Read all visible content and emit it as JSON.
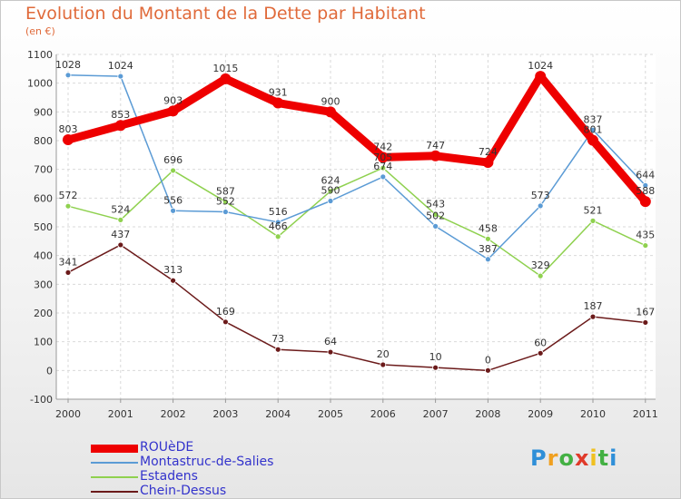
{
  "chart_data": {
    "type": "line",
    "title": "Evolution du Montant de la Dette par Habitant",
    "subtitle": "(en €)",
    "xlabel": "",
    "ylabel": "",
    "categories": [
      "2000",
      "2001",
      "2002",
      "2003",
      "2004",
      "2005",
      "2006",
      "2007",
      "2008",
      "2009",
      "2010",
      "2011"
    ],
    "ylim": [
      -100,
      1100
    ],
    "yticks": [
      -100,
      0,
      100,
      200,
      300,
      400,
      500,
      600,
      700,
      800,
      900,
      1000,
      1100
    ],
    "grid": true,
    "legend_position": "bottom-left",
    "series": [
      {
        "name": "ROUèDE",
        "color": "#ee0000",
        "values": [
          803,
          853,
          903,
          1015,
          931,
          900,
          742,
          747,
          724,
          1024,
          801,
          588
        ]
      },
      {
        "name": "Montastruc-de-Salies",
        "color": "#5b9bd5",
        "values": [
          1028,
          1024,
          556,
          552,
          516,
          590,
          674,
          502,
          387,
          573,
          837,
          644
        ]
      },
      {
        "name": "Estadens",
        "color": "#8fd14f",
        "values": [
          572,
          524,
          696,
          587,
          466,
          624,
          705,
          543,
          458,
          329,
          521,
          435
        ]
      },
      {
        "name": "Chein-Dessus",
        "color": "#6b1a1a",
        "values": [
          341,
          437,
          313,
          169,
          73,
          64,
          20,
          10,
          0,
          60,
          187,
          167
        ]
      }
    ]
  },
  "brand": {
    "letters": [
      "P",
      "r",
      "o",
      "x",
      "i",
      "t",
      "i"
    ],
    "colors": [
      "#2f8fd8",
      "#f0a020",
      "#43b043",
      "#e03a2a",
      "#f0c020",
      "#43b043",
      "#2f8fd8"
    ]
  }
}
